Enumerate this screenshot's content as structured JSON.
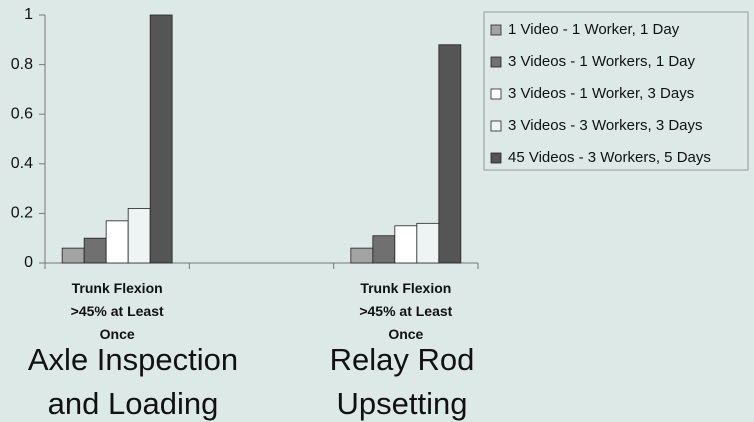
{
  "chart_data": {
    "type": "bar",
    "categories": [
      "Trunk Flexion >45% at Least Once",
      null,
      "Trunk Flexion >45% at Least Once"
    ],
    "series": [
      {
        "name": "1 Video -  1 Worker, 1 Day",
        "color": "#a3a3a3",
        "values": [
          0.06,
          null,
          0.06
        ]
      },
      {
        "name": "3 Videos - 1 Workers, 1 Day",
        "color": "#707070",
        "values": [
          0.1,
          null,
          0.11
        ]
      },
      {
        "name": "3 Videos - 1 Worker, 3 Days",
        "color": "#ffffff",
        "values": [
          0.17,
          null,
          0.15
        ]
      },
      {
        "name": "3 Videos - 3 Workers, 3 Days",
        "color": "#eef4f3",
        "values": [
          0.22,
          null,
          0.16
        ]
      },
      {
        "name": "45 Videos - 3 Workers, 5 Days",
        "color": "#555555",
        "values": [
          1.0,
          null,
          0.88
        ]
      }
    ],
    "ylim": [
      0,
      1
    ],
    "yticks": [
      0,
      0.2,
      0.4,
      0.6,
      0.8,
      1
    ],
    "grid": false,
    "legend": "right",
    "annotations": [
      "Axle Inspection and Loading",
      "Relay Rod Upsetting"
    ]
  }
}
